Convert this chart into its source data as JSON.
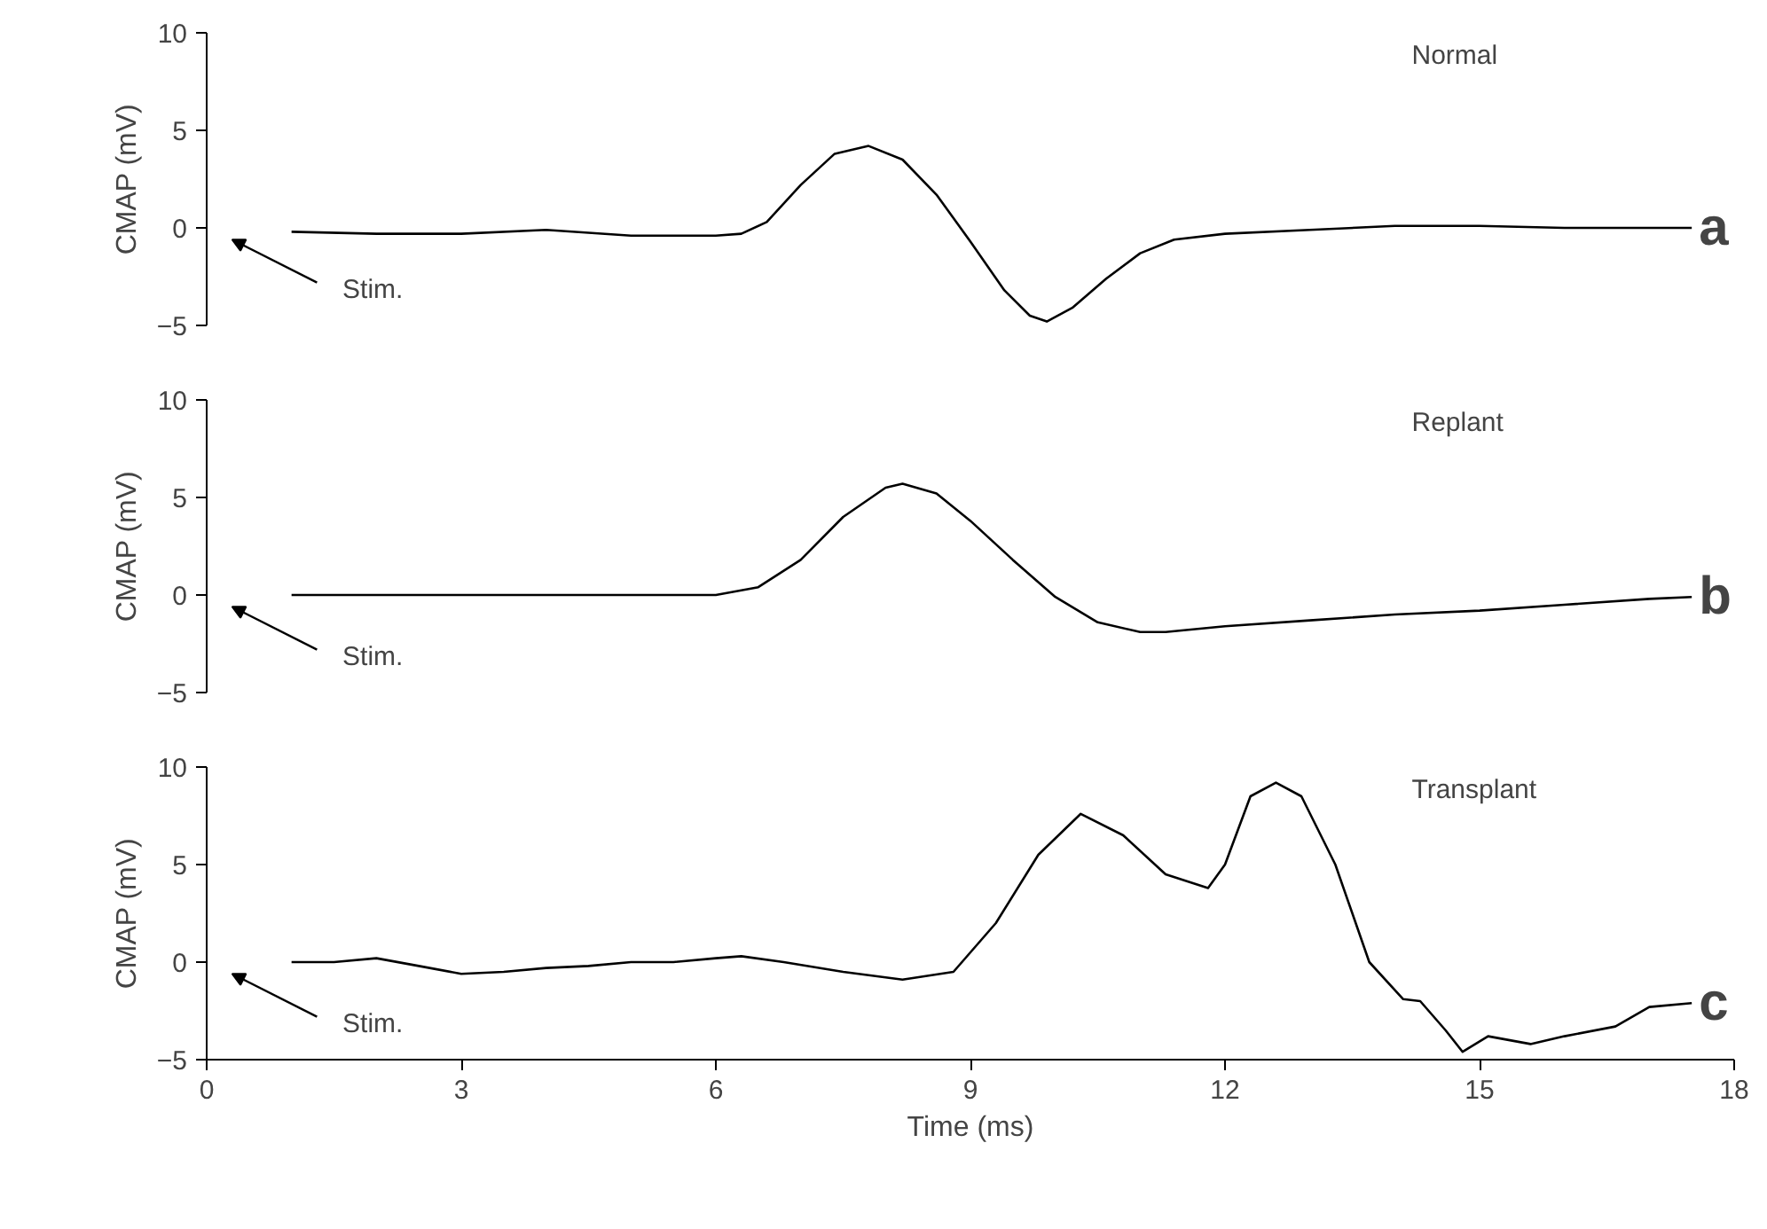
{
  "chart_data": [
    {
      "type": "line",
      "xlim": [
        0,
        18
      ],
      "ylim": [
        -5,
        10
      ],
      "yticks": [
        -5,
        0,
        5,
        10
      ],
      "ylabel": "CMAP (mV)",
      "tick_labels": "y",
      "grid": false,
      "series": [
        {
          "name": "Normal",
          "color": "#000000",
          "x": [
            1,
            2,
            3,
            4,
            5,
            6,
            6.3,
            6.6,
            7,
            7.4,
            7.8,
            8.2,
            8.6,
            9,
            9.4,
            9.7,
            9.9,
            10.2,
            10.6,
            11,
            11.4,
            12,
            13,
            14,
            15,
            16,
            17,
            17.5
          ],
          "values": [
            -0.2,
            -0.3,
            -0.3,
            -0.1,
            -0.4,
            -0.4,
            -0.3,
            0.3,
            2.2,
            3.8,
            4.2,
            3.5,
            1.7,
            -0.7,
            -3.2,
            -4.5,
            -4.8,
            -4.1,
            -2.6,
            -1.3,
            -0.6,
            -0.3,
            -0.1,
            0.1,
            0.1,
            0,
            0,
            0
          ]
        }
      ],
      "annotations": [
        "Stim.",
        "a"
      ]
    },
    {
      "type": "line",
      "xlim": [
        0,
        18
      ],
      "ylim": [
        -5,
        10
      ],
      "yticks": [
        -5,
        0,
        5,
        10
      ],
      "ylabel": "CMAP (mV)",
      "tick_labels": "y",
      "grid": false,
      "series": [
        {
          "name": "Replant",
          "color": "#000000",
          "x": [
            1,
            2,
            3,
            4,
            5,
            6,
            6.5,
            7,
            7.5,
            8,
            8.2,
            8.6,
            9,
            9.5,
            10,
            10.5,
            11,
            11.3,
            12,
            13,
            14,
            15,
            16,
            17,
            17.5
          ],
          "values": [
            0,
            0,
            0,
            0,
            0,
            0,
            0.4,
            1.8,
            4,
            5.5,
            5.7,
            5.2,
            3.8,
            1.8,
            -0.1,
            -1.4,
            -1.9,
            -1.9,
            -1.6,
            -1.3,
            -1,
            -0.8,
            -0.5,
            -0.2,
            -0.1
          ]
        }
      ],
      "annotations": [
        "Stim.",
        "b"
      ]
    },
    {
      "type": "line",
      "xlim": [
        0,
        18
      ],
      "ylim": [
        -5,
        10
      ],
      "xticks": [
        0,
        3,
        6,
        9,
        12,
        15,
        18
      ],
      "yticks": [
        -5,
        0,
        5,
        10
      ],
      "xlabel": "Time (ms)",
      "ylabel": "CMAP (mV)",
      "grid": false,
      "series": [
        {
          "name": "Transplant",
          "color": "#000000",
          "x": [
            1,
            1.5,
            2,
            2.5,
            3,
            3.5,
            4,
            4.5,
            5,
            5.5,
            6,
            6.3,
            6.8,
            7.5,
            8.2,
            8.8,
            9.3,
            9.8,
            10.3,
            10.8,
            11.3,
            11.8,
            12,
            12.3,
            12.6,
            12.9,
            13.3,
            13.7,
            14.1,
            14.3,
            14.6,
            14.8,
            15.1,
            15.6,
            16,
            16.6,
            17,
            17.5
          ],
          "values": [
            0,
            0,
            0.2,
            -0.2,
            -0.6,
            -0.5,
            -0.3,
            -0.2,
            0,
            0,
            0.2,
            0.3,
            0,
            -0.5,
            -0.9,
            -0.5,
            2,
            5.5,
            7.6,
            6.5,
            4.5,
            3.8,
            5,
            8.5,
            9.2,
            8.5,
            5,
            0,
            -1.9,
            -2,
            -3.5,
            -4.6,
            -3.8,
            -4.2,
            -3.8,
            -3.3,
            -2.3,
            -2.1
          ]
        }
      ],
      "annotations": [
        "Stim.",
        "c"
      ]
    }
  ]
}
